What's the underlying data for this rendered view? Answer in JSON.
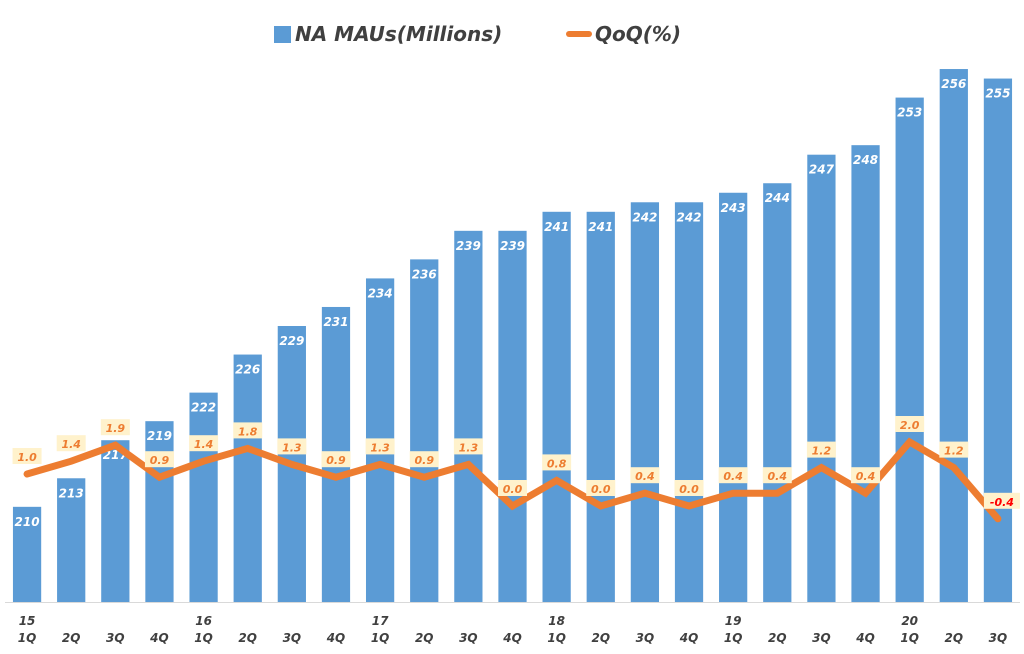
{
  "chart_data": {
    "type": "bar",
    "title": "",
    "xlabel": "",
    "ylabel": "",
    "legend_position": "top-center",
    "grid": false,
    "categories": [
      "15 1Q",
      "2Q",
      "3Q",
      "4Q",
      "16 1Q",
      "2Q",
      "3Q",
      "4Q",
      "17 1Q",
      "2Q",
      "3Q",
      "4Q",
      "18 1Q",
      "2Q",
      "3Q",
      "4Q",
      "19 1Q",
      "2Q",
      "3Q",
      "4Q",
      "20 1Q",
      "2Q",
      "3Q"
    ],
    "x_tick_quarters": [
      "1Q",
      "2Q",
      "3Q",
      "4Q",
      "1Q",
      "2Q",
      "3Q",
      "4Q",
      "1Q",
      "2Q",
      "3Q",
      "4Q",
      "1Q",
      "2Q",
      "3Q",
      "4Q",
      "1Q",
      "2Q",
      "3Q",
      "4Q",
      "1Q",
      "2Q",
      "3Q"
    ],
    "x_tick_years": [
      "15",
      "",
      "",
      "",
      "16",
      "",
      "",
      "",
      "17",
      "",
      "",
      "",
      "18",
      "",
      "",
      "",
      "19",
      "",
      "",
      "",
      "20",
      "",
      ""
    ],
    "series": [
      {
        "name": "NA MAUs(Millions)",
        "type": "bar",
        "color": "#5b9bd5",
        "axis": "left",
        "values": [
          210,
          213,
          217,
          219,
          222,
          226,
          229,
          231,
          234,
          236,
          239,
          239,
          241,
          241,
          242,
          242,
          243,
          244,
          247,
          248,
          253,
          256,
          255
        ],
        "labels": [
          "210",
          "213",
          "217",
          "219",
          "222",
          "226",
          "229",
          "231",
          "234",
          "236",
          "239",
          "239",
          "241",
          "241",
          "242",
          "242",
          "243",
          "244",
          "247",
          "248",
          "253",
          "256",
          "255"
        ]
      },
      {
        "name": "QoQ(%)",
        "type": "line",
        "color": "#ed7d31",
        "axis": "right",
        "values": [
          1.0,
          1.4,
          1.9,
          0.9,
          1.4,
          1.8,
          1.3,
          0.9,
          1.3,
          0.9,
          1.3,
          0.0,
          0.8,
          0.0,
          0.4,
          0.0,
          0.4,
          0.4,
          1.2,
          0.4,
          2.0,
          1.2,
          -0.4
        ],
        "labels": [
          "1.0",
          "1.4",
          "1.9",
          "0.9",
          "1.4",
          "1.8",
          "1.3",
          "0.9",
          "1.3",
          "0.9",
          "1.3",
          "0.0",
          "0.8",
          "0.0",
          "0.4",
          "0.0",
          "0.4",
          "0.4",
          "1.2",
          "0.4",
          "2.0",
          "1.2",
          "-0.4"
        ]
      }
    ],
    "ylim": [
      200,
      258
    ],
    "y2lim": [
      -3.0,
      4.5
    ]
  },
  "legend": {
    "bar_label": "NA MAUs(Millions)",
    "line_label": "QoQ(%)"
  }
}
